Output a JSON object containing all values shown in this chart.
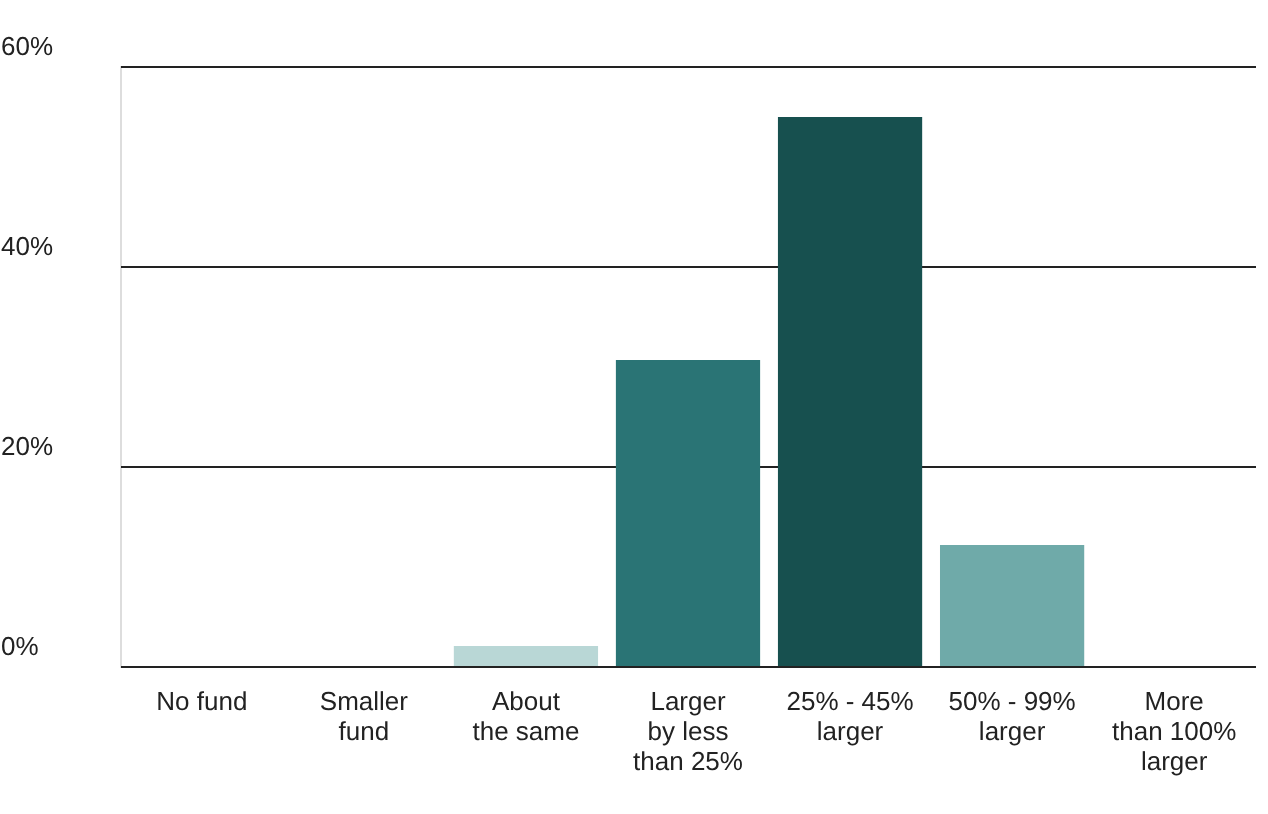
{
  "chart_data": {
    "type": "bar",
    "categories": [
      "No fund",
      "Smaller\nfund",
      "About\nthe same",
      "Larger\nby less\nthan 25%",
      "25% - 45%\nlarger",
      "50% - 99%\nlarger",
      "More\nthan 100%\nlarger"
    ],
    "values": [
      0,
      0,
      2.0,
      30.6,
      54.9,
      12.1,
      0
    ],
    "colors": [
      "#b9d7d6",
      "#b9d7d6",
      "#b9d7d6",
      "#2a7475",
      "#17504f",
      "#6faaa9",
      "#b9d7d6"
    ],
    "ylim": [
      0,
      60
    ],
    "yticks": [
      {
        "value": 0,
        "label": "0%"
      },
      {
        "value": 20,
        "label": "20%"
      },
      {
        "value": 40,
        "label": "40%"
      },
      {
        "value": 60,
        "label": "60%"
      }
    ],
    "grid": "y"
  }
}
